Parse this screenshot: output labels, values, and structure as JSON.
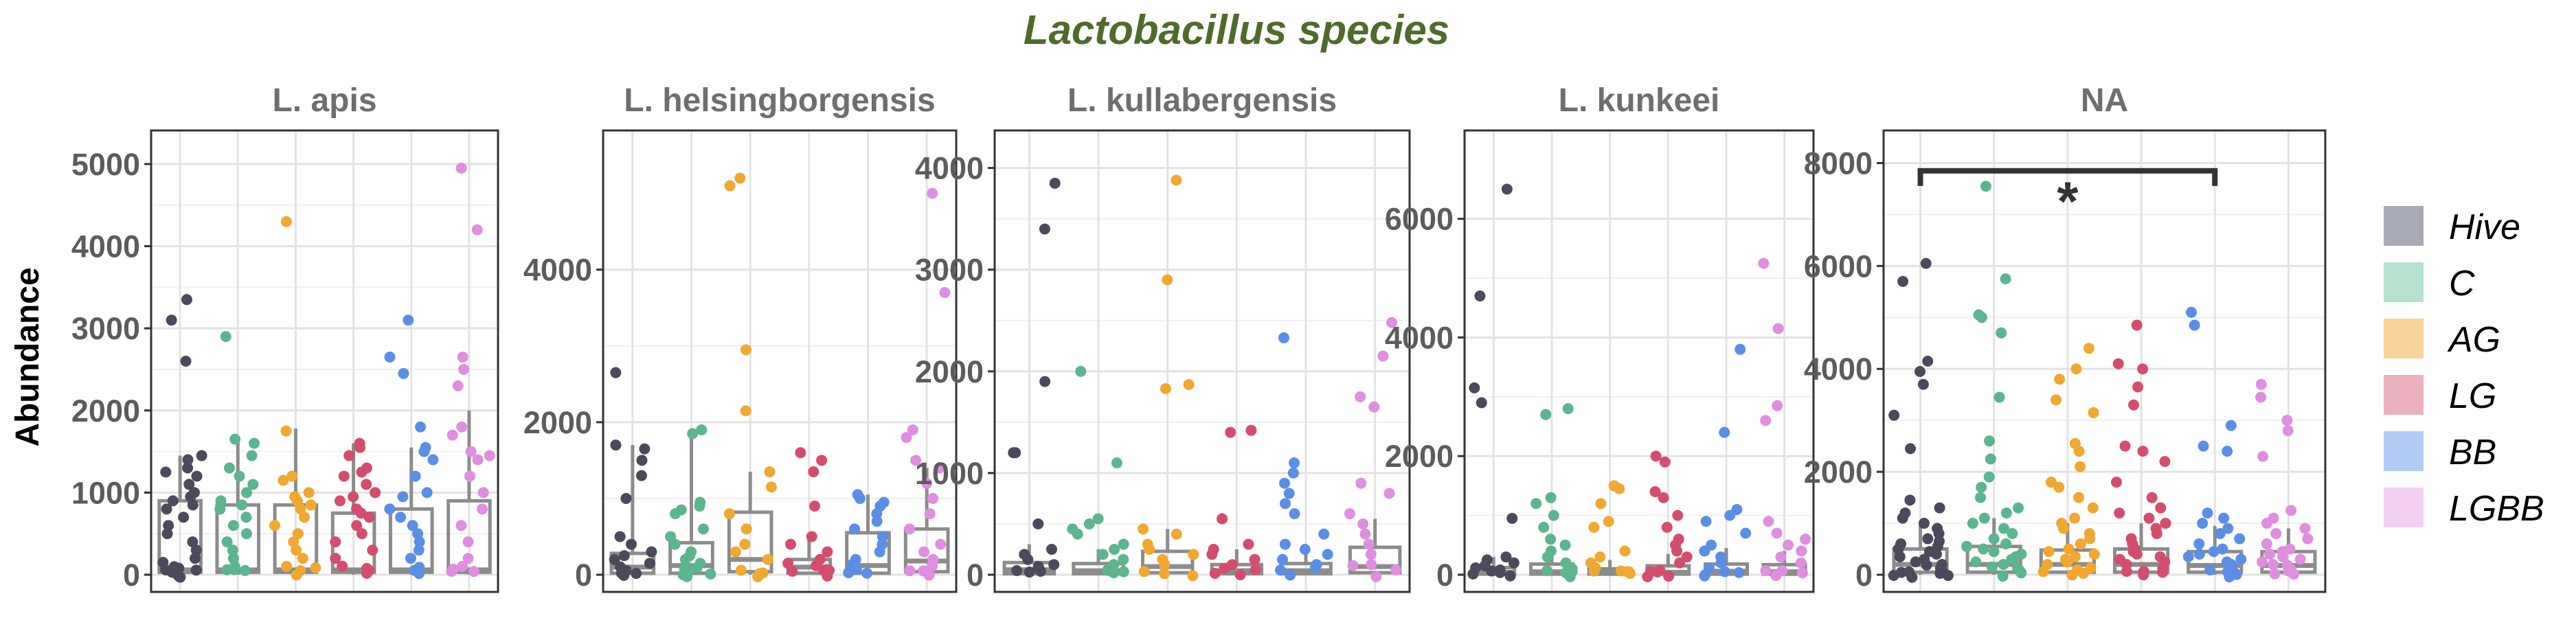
{
  "chart_data": {
    "type": "box-jitter",
    "title": "Lactobacillus species",
    "ylabel": "Abundance",
    "groups": [
      "Hive",
      "C",
      "AG",
      "LG",
      "BB",
      "LGBB"
    ],
    "colors": {
      "Hive": "#4a4a5a",
      "C": "#5bb58e",
      "AG": "#f0a830",
      "LG": "#d44d6e",
      "BB": "#5b8fe6",
      "LGBB": "#e08ee0"
    },
    "legend_fill": {
      "Hive": "#a8aab6",
      "C": "#b4e2cf",
      "AG": "#f7d29a",
      "LG": "#ebb1bf",
      "BB": "#b2cdf5",
      "LGBB": "#f2cff2"
    },
    "box_color": "#8c8c8c",
    "grid": true,
    "legend_position": "right",
    "panels": [
      {
        "name": "L. apis",
        "ylim": [
          0,
          5200
        ],
        "yticks": [
          0,
          1000,
          2000,
          3000,
          4000,
          5000
        ],
        "box_stats": [
          {
            "group": "Hive",
            "q1": 30,
            "median": 60,
            "q3": 900,
            "lo": 0,
            "hi": 1450
          },
          {
            "group": "C",
            "q1": 30,
            "median": 60,
            "q3": 850,
            "lo": 0,
            "hi": 1650
          },
          {
            "group": "AG",
            "q1": 30,
            "median": 60,
            "q3": 850,
            "lo": 0,
            "hi": 1780
          },
          {
            "group": "LG",
            "q1": 30,
            "median": 60,
            "q3": 750,
            "lo": 0,
            "hi": 1600
          },
          {
            "group": "BB",
            "q1": 30,
            "median": 60,
            "q3": 800,
            "lo": 0,
            "hi": 1550
          },
          {
            "group": "LGBB",
            "q1": 30,
            "median": 60,
            "q3": 900,
            "lo": 0,
            "hi": 2000
          }
        ],
        "points": {
          "Hive": [
            3350,
            3100,
            2600,
            1450,
            1400,
            1300,
            1250,
            1200,
            1100,
            1000,
            950,
            900,
            850,
            800,
            700,
            600,
            500,
            400,
            300,
            200,
            150,
            100,
            80,
            60,
            50,
            40,
            30,
            20,
            10,
            5
          ],
          "C": [
            2900,
            1650,
            1600,
            1450,
            1300,
            1200,
            1100,
            1000,
            900,
            850,
            800,
            700,
            600,
            500,
            400,
            300,
            200,
            100,
            60,
            30,
            10
          ],
          "AG": [
            4300,
            1750,
            1200,
            1150,
            1000,
            950,
            900,
            850,
            800,
            700,
            600,
            500,
            400,
            300,
            200,
            100,
            60,
            30,
            10
          ],
          "LG": [
            1600,
            1550,
            1450,
            1300,
            1250,
            1200,
            1100,
            1000,
            950,
            900,
            800,
            750,
            700,
            600,
            500,
            400,
            300,
            200,
            100,
            60,
            30,
            10
          ],
          "BB": [
            3100,
            2650,
            2450,
            1800,
            1550,
            1500,
            1400,
            1200,
            1000,
            950,
            800,
            700,
            600,
            500,
            400,
            300,
            200,
            100,
            60,
            30,
            10
          ],
          "LGBB": [
            4950,
            4200,
            2650,
            2500,
            2300,
            1800,
            1700,
            1500,
            1450,
            1400,
            1200,
            1000,
            800,
            600,
            400,
            200,
            100,
            60,
            30,
            10
          ]
        }
      },
      {
        "name": "L. helsingborgensis",
        "ylim": [
          0,
          5600
        ],
        "yticks": [
          0,
          2000,
          4000
        ],
        "box_stats": [
          {
            "group": "Hive",
            "q1": 20,
            "median": 100,
            "q3": 280,
            "lo": 0,
            "hi": 1700
          },
          {
            "group": "C",
            "q1": 20,
            "median": 120,
            "q3": 420,
            "lo": 0,
            "hi": 1900
          },
          {
            "group": "AG",
            "q1": 40,
            "median": 200,
            "q3": 820,
            "lo": 0,
            "hi": 1350
          },
          {
            "group": "LG",
            "q1": 20,
            "median": 100,
            "q3": 200,
            "lo": 0,
            "hi": 500
          },
          {
            "group": "BB",
            "q1": 20,
            "median": 120,
            "q3": 550,
            "lo": 0,
            "hi": 1050
          },
          {
            "group": "LGBB",
            "q1": 40,
            "median": 180,
            "q3": 600,
            "lo": 0,
            "hi": 1400
          }
        ],
        "points": {
          "Hive": [
            2650,
            1700,
            1650,
            1500,
            1300,
            1000,
            500,
            400,
            300,
            250,
            200,
            150,
            100,
            80,
            60,
            40,
            20,
            10
          ],
          "C": [
            1900,
            1850,
            950,
            900,
            850,
            800,
            600,
            500,
            400,
            300,
            250,
            200,
            150,
            100,
            80,
            60,
            40,
            20,
            10
          ],
          "AG": [
            5200,
            5100,
            2950,
            2150,
            1350,
            1150,
            800,
            600,
            400,
            300,
            200,
            100,
            60,
            20,
            10
          ],
          "LG": [
            1600,
            1500,
            1350,
            900,
            500,
            400,
            300,
            200,
            150,
            100,
            80,
            60,
            40,
            20,
            10
          ],
          "BB": [
            1050,
            1000,
            950,
            900,
            800,
            700,
            600,
            500,
            400,
            300,
            200,
            100,
            60,
            20,
            10
          ],
          "LGBB": [
            5000,
            3700,
            1900,
            1800,
            1500,
            1400,
            1200,
            1000,
            800,
            600,
            400,
            300,
            200,
            100,
            60,
            20,
            10
          ]
        }
      },
      {
        "name": "L. kullabergensis",
        "ylim": [
          0,
          4200
        ],
        "yticks": [
          0,
          1000,
          2000,
          3000,
          4000
        ],
        "box_stats": [
          {
            "group": "Hive",
            "q1": 10,
            "median": 50,
            "q3": 120,
            "lo": 0,
            "hi": 300
          },
          {
            "group": "C",
            "q1": 10,
            "median": 40,
            "q3": 110,
            "lo": 0,
            "hi": 250
          },
          {
            "group": "AG",
            "q1": 20,
            "median": 80,
            "q3": 230,
            "lo": 0,
            "hi": 450
          },
          {
            "group": "LG",
            "q1": 10,
            "median": 40,
            "q3": 100,
            "lo": 0,
            "hi": 250
          },
          {
            "group": "BB",
            "q1": 10,
            "median": 40,
            "q3": 110,
            "lo": 0,
            "hi": 250
          },
          {
            "group": "LGBB",
            "q1": 20,
            "median": 80,
            "q3": 270,
            "lo": 0,
            "hi": 550
          }
        ],
        "points": {
          "Hive": [
            3850,
            3400,
            1900,
            1200,
            1200,
            500,
            250,
            200,
            150,
            100,
            80,
            60,
            40,
            20,
            10
          ],
          "C": [
            2000,
            1100,
            550,
            500,
            450,
            400,
            300,
            250,
            200,
            150,
            100,
            60,
            40,
            20,
            10
          ],
          "AG": [
            3880,
            2900,
            1870,
            1830,
            450,
            400,
            300,
            250,
            200,
            150,
            100,
            60,
            20,
            10
          ],
          "LG": [
            1420,
            1400,
            550,
            300,
            250,
            200,
            150,
            100,
            60,
            40,
            20,
            10
          ],
          "BB": [
            2330,
            1100,
            1000,
            900,
            800,
            700,
            600,
            400,
            300,
            250,
            200,
            150,
            100,
            60,
            20,
            10
          ],
          "LGBB": [
            2480,
            2150,
            1750,
            1650,
            900,
            800,
            600,
            500,
            400,
            300,
            200,
            100,
            60,
            20,
            10
          ]
        }
      },
      {
        "name": "L. kunkeei",
        "ylim": [
          0,
          7200
        ],
        "yticks": [
          0,
          2000,
          4000,
          6000
        ],
        "box_stats": [
          {
            "group": "Hive",
            "q1": 10,
            "median": 40,
            "q3": 120,
            "lo": 0,
            "hi": 300
          },
          {
            "group": "C",
            "q1": 10,
            "median": 50,
            "q3": 180,
            "lo": 0,
            "hi": 400
          },
          {
            "group": "AG",
            "q1": 10,
            "median": 40,
            "q3": 100,
            "lo": 0,
            "hi": 250
          },
          {
            "group": "LG",
            "q1": 10,
            "median": 40,
            "q3": 150,
            "lo": 0,
            "hi": 350
          },
          {
            "group": "BB",
            "q1": 10,
            "median": 60,
            "q3": 180,
            "lo": 0,
            "hi": 450
          },
          {
            "group": "LGBB",
            "q1": 10,
            "median": 50,
            "q3": 170,
            "lo": 0,
            "hi": 400
          }
        ],
        "points": {
          "Hive": [
            6500,
            4700,
            3150,
            2900,
            950,
            300,
            250,
            200,
            150,
            100,
            80,
            60,
            40,
            20,
            10
          ],
          "C": [
            2800,
            2700,
            1300,
            1200,
            1000,
            800,
            600,
            500,
            400,
            300,
            200,
            100,
            60,
            40,
            20,
            10
          ],
          "AG": [
            1500,
            1450,
            1200,
            900,
            800,
            400,
            300,
            200,
            100,
            60,
            40,
            20,
            10
          ],
          "LG": [
            2000,
            1900,
            1400,
            1300,
            1000,
            800,
            600,
            500,
            400,
            300,
            200,
            100,
            60,
            40,
            20,
            10
          ],
          "BB": [
            3800,
            2400,
            1100,
            1000,
            900,
            700,
            500,
            400,
            300,
            200,
            100,
            60,
            40,
            20,
            10
          ],
          "LGBB": [
            5250,
            4150,
            2850,
            2600,
            900,
            700,
            600,
            500,
            400,
            300,
            200,
            100,
            60,
            20,
            10
          ]
        }
      },
      {
        "name": "NA",
        "ylim": [
          0,
          8300
        ],
        "yticks": [
          0,
          2000,
          4000,
          6000,
          8000
        ],
        "significance": {
          "from": "Hive",
          "to": "BB",
          "y": 7850,
          "label": "*"
        },
        "box_stats": [
          {
            "group": "Hive",
            "q1": 50,
            "median": 200,
            "q3": 500,
            "lo": 0,
            "hi": 1000
          },
          {
            "group": "C",
            "q1": 50,
            "median": 200,
            "q3": 550,
            "lo": 0,
            "hi": 1100
          },
          {
            "group": "AG",
            "q1": 50,
            "median": 200,
            "q3": 480,
            "lo": 0,
            "hi": 1000
          },
          {
            "group": "LG",
            "q1": 50,
            "median": 200,
            "q3": 500,
            "lo": 0,
            "hi": 1000
          },
          {
            "group": "BB",
            "q1": 50,
            "median": 180,
            "q3": 450,
            "lo": 0,
            "hi": 950
          },
          {
            "group": "LGBB",
            "q1": 50,
            "median": 180,
            "q3": 450,
            "lo": 0,
            "hi": 900
          }
        ],
        "points": {
          "Hive": [
            6050,
            5700,
            4150,
            3950,
            3700,
            3100,
            2450,
            1450,
            1300,
            1200,
            1100,
            1000,
            900,
            800,
            700,
            650,
            600,
            550,
            500,
            450,
            400,
            350,
            300,
            250,
            200,
            150,
            100,
            80,
            60,
            40,
            20,
            10,
            5,
            3
          ],
          "C": [
            7550,
            5750,
            5050,
            5000,
            4700,
            3450,
            2600,
            2250,
            1900,
            1700,
            1500,
            1300,
            1200,
            1100,
            1000,
            900,
            800,
            700,
            600,
            550,
            500,
            450,
            400,
            350,
            300,
            250,
            200,
            150,
            100,
            60,
            30,
            10
          ],
          "AG": [
            4400,
            4000,
            3800,
            3400,
            3150,
            2550,
            2400,
            2100,
            1800,
            1700,
            1500,
            1300,
            1100,
            1000,
            900,
            800,
            700,
            600,
            500,
            450,
            400,
            350,
            300,
            250,
            200,
            150,
            100,
            60,
            30,
            10
          ],
          "LG": [
            4850,
            4100,
            4000,
            3650,
            3300,
            2500,
            2400,
            2200,
            1800,
            1500,
            1300,
            1200,
            1100,
            1000,
            900,
            800,
            700,
            600,
            500,
            450,
            400,
            350,
            300,
            250,
            200,
            150,
            100,
            60,
            30,
            10
          ],
          "BB": [
            5100,
            4850,
            2900,
            2500,
            2400,
            1200,
            1100,
            1000,
            900,
            800,
            700,
            600,
            500,
            450,
            400,
            350,
            300,
            250,
            200,
            150,
            100,
            60,
            30,
            10
          ],
          "LGBB": [
            3700,
            3450,
            3000,
            2800,
            2300,
            1250,
            1100,
            1000,
            900,
            800,
            700,
            600,
            500,
            450,
            400,
            350,
            300,
            250,
            200,
            150,
            100,
            60,
            30,
            10
          ]
        }
      }
    ]
  }
}
